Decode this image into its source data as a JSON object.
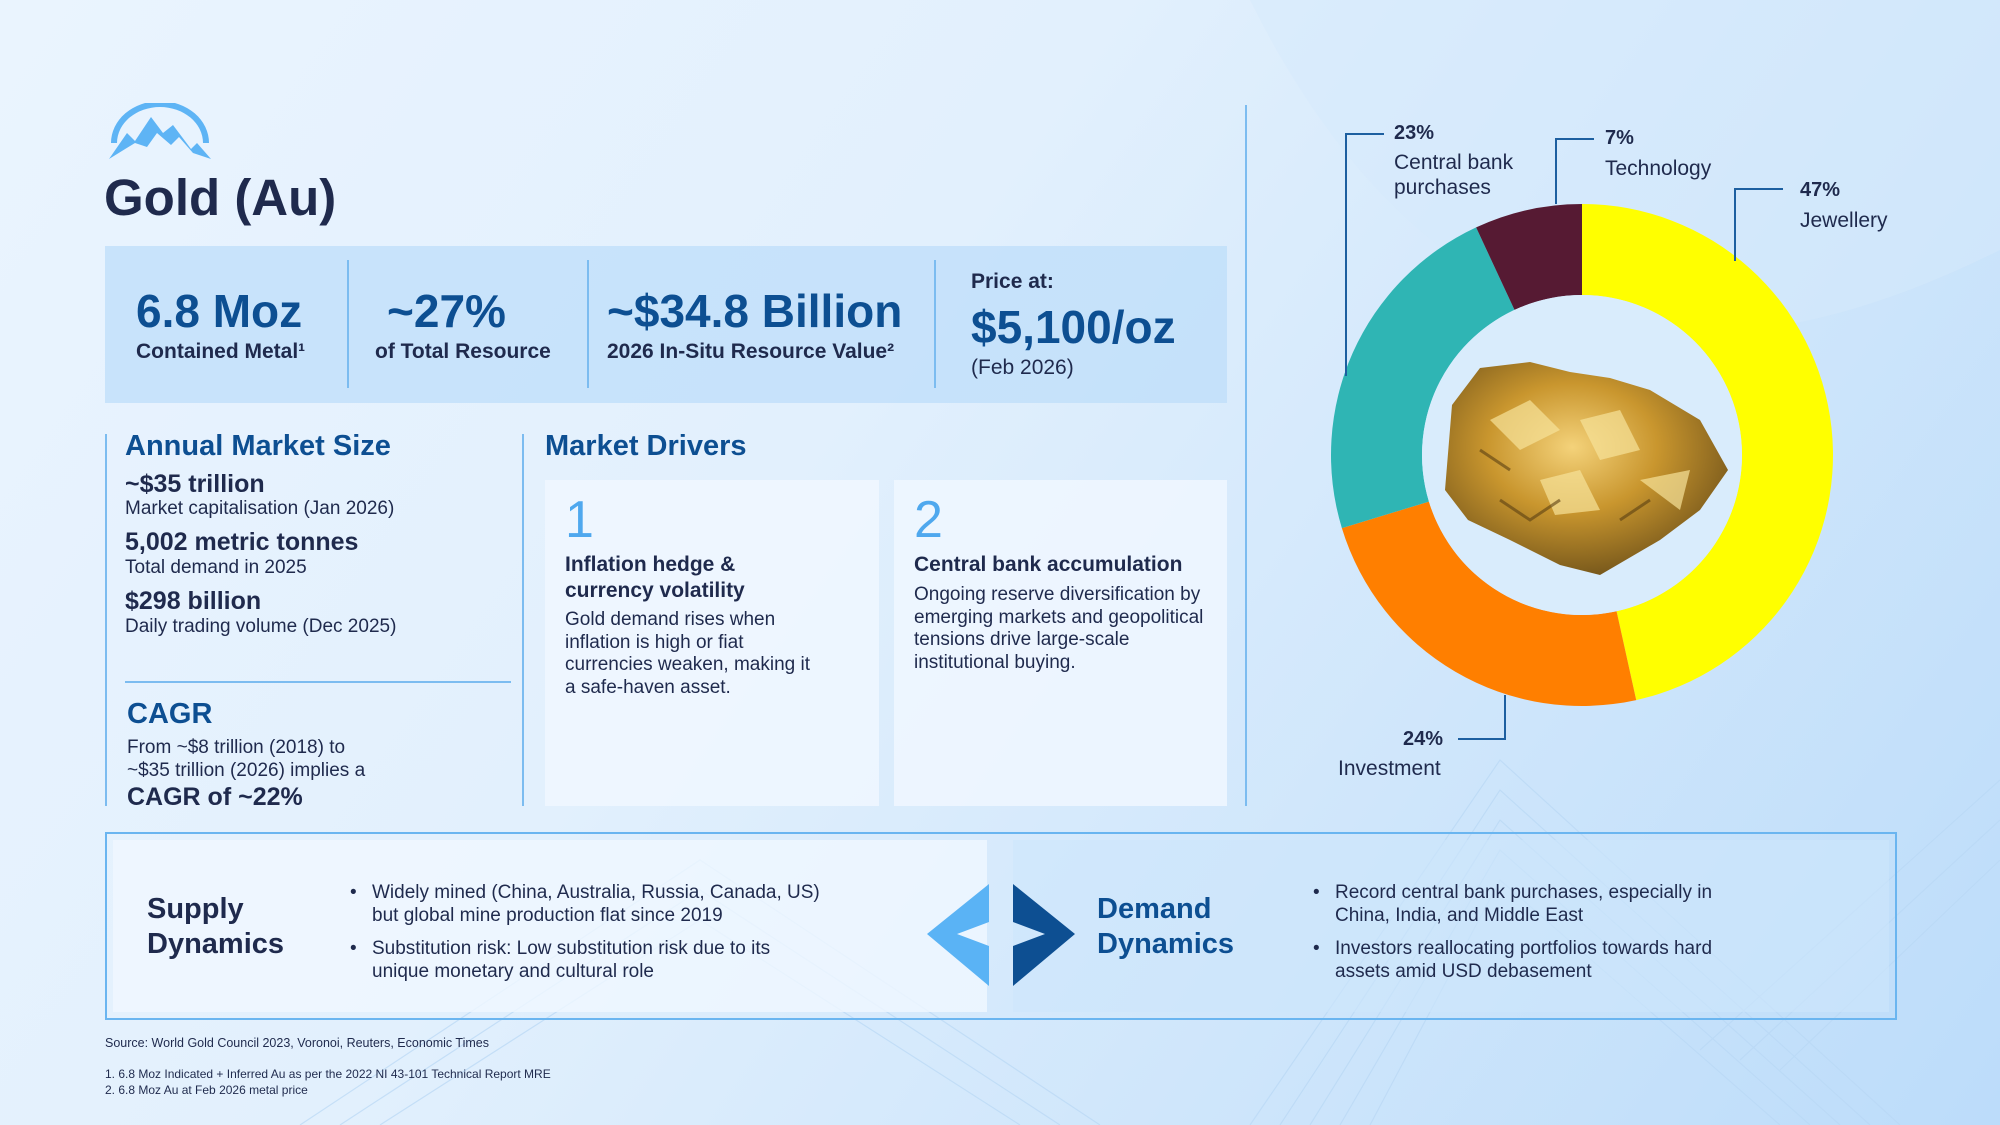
{
  "header": {
    "title": "Gold (Au)"
  },
  "stats": [
    {
      "value": "6.8 Moz",
      "label": "Contained Metal¹"
    },
    {
      "value": "~27%",
      "label": "of Total Resource"
    },
    {
      "value": "~$34.8 Billion",
      "label": "2026 In-Situ Resource Value²"
    },
    {
      "value": "$5,100/oz",
      "prefix": "Price at:",
      "label": "(Feb 2026)"
    }
  ],
  "market_size": {
    "title": "Annual Market Size",
    "items": [
      {
        "value": "~$35 trillion",
        "label": "Market capitalisation (Jan 2026)"
      },
      {
        "value": "5,002 metric tonnes",
        "label": "Total demand in 2025"
      },
      {
        "value": "$298 billion",
        "label": "Daily trading volume (Dec 2025)"
      }
    ]
  },
  "cagr": {
    "title": "CAGR",
    "line1": "From ~$8 trillion (2018) to",
    "line2": "~$35 trillion (2026) implies a",
    "result": "CAGR of ~22%"
  },
  "drivers": {
    "title": "Market Drivers",
    "cards": [
      {
        "num": "1",
        "title": "Inflation hedge & currency volatility",
        "body": "Gold demand rises when inflation is high or fiat currencies weaken, making it a safe-haven asset."
      },
      {
        "num": "2",
        "title": "Central bank accumulation",
        "body": "Ongoing reserve diversification by emerging markets and geopolitical tensions drive large-scale institutional buying."
      }
    ]
  },
  "supply": {
    "title_1": "Supply",
    "title_2": "Dynamics",
    "bullets": [
      "Widely mined (China, Australia, Russia, Canada, US) but global mine production flat since 2019",
      "Substitution risk: Low substitution risk due to its unique monetary and cultural role"
    ]
  },
  "demand": {
    "title_1": "Demand",
    "title_2": "Dynamics",
    "bullets": [
      "Record central bank purchases, especially in China, India, and Middle East",
      "Investors reallocating portfolios towards hard assets amid USD debasement"
    ]
  },
  "footer": {
    "source": "Source: World Gold Council 2023, Voronoi, Reuters, Economic Times",
    "notes": [
      "1.  6.8 Moz Indicated + Inferred Au as per the 2022 NI 43-101 Technical Report MRE",
      "2.  6.8 Moz Au at Feb 2026 metal price"
    ]
  },
  "chart_data": {
    "type": "pie",
    "variant": "donut",
    "title": "",
    "categories": [
      "Jewellery",
      "Investment",
      "Central bank purchases",
      "Technology"
    ],
    "values": [
      47,
      24,
      23,
      7
    ],
    "labels": [
      "47%",
      "24%",
      "23%",
      "7%"
    ],
    "colors": [
      "#ffff00",
      "#ff7f00",
      "#2fb5b4",
      "#561a33"
    ]
  }
}
